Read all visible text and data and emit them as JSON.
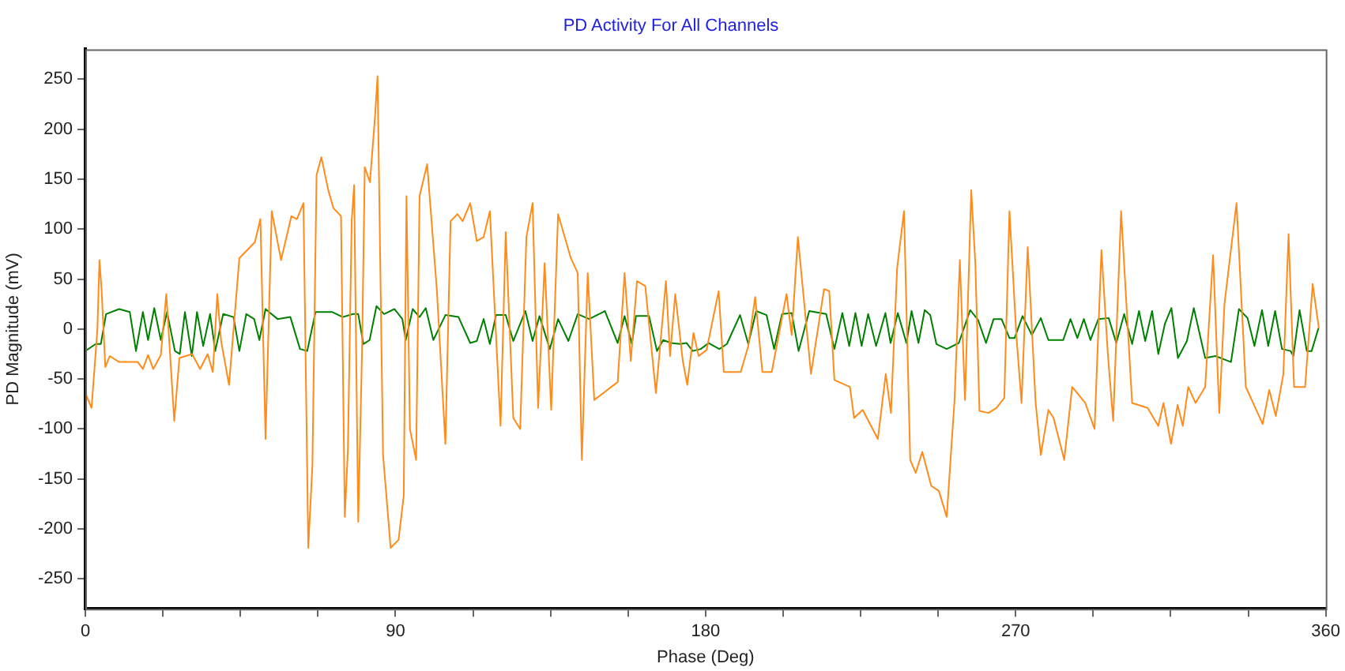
{
  "chart_data": {
    "type": "line",
    "title": "PD Activity For All Channels",
    "xlabel": "Phase (Deg)",
    "ylabel": "PD Magnitude (mV)",
    "xlim": [
      0,
      360
    ],
    "xticks": [
      0,
      {
        "value": 22.5,
        "label": null
      },
      {
        "value": 45,
        "label": null
      },
      {
        "value": 67.5,
        "label": null
      },
      90,
      {
        "value": 112.5,
        "label": null
      },
      {
        "value": 135,
        "label": null
      },
      {
        "value": 157.5,
        "label": null
      },
      180,
      {
        "value": 202.5,
        "label": null
      },
      {
        "value": 225,
        "label": null
      },
      {
        "value": 247.5,
        "label": null
      },
      270,
      {
        "value": 292.5,
        "label": null
      },
      {
        "value": 315,
        "label": null
      },
      {
        "value": 337.5,
        "label": null
      },
      360
    ],
    "ylim": [
      -280,
      280
    ],
    "yticks": [
      -250,
      -200,
      -150,
      -100,
      -50,
      0,
      50,
      100,
      150,
      200,
      250
    ],
    "grid": false,
    "legend": false,
    "marker": "none",
    "line_style": "solid",
    "series": [
      {
        "color": "#ff8c1a",
        "x": [
          0,
          1.8,
          3.5,
          4.1,
          4.7,
          5.8,
          7.1,
          9.8,
          15.2,
          16.7,
          18.2,
          19.7,
          21.9,
          23.5,
          25.8,
          27.3,
          31,
          33.3,
          35.5,
          37,
          38.3,
          39.4,
          41.7,
          44.7,
          49.2,
          50.8,
          52.3,
          54.1,
          56.8,
          59.8,
          61.4,
          63.3,
          64.7,
          65.9,
          67.1,
          68.5,
          70.5,
          72,
          74.2,
          75.3,
          76.2,
          77.3,
          78,
          79.2,
          80.3,
          81.1,
          82.6,
          84.1,
          84.8,
          86.4,
          88.6,
          90.9,
          92.4,
          93.2,
          94.2,
          96,
          97,
          99.2,
          102,
          104.5,
          106,
          108,
          109.5,
          111.7,
          113.6,
          115.6,
          117.4,
          120.5,
          122,
          124.2,
          126.2,
          128,
          129.8,
          131.4,
          133.3,
          135.2,
          137.2,
          140.9,
          142.9,
          144.1,
          145.8,
          147.7,
          154.5,
          156.5,
          158.3,
          160.1,
          162.5,
          165.6,
          168.5,
          169.7,
          171.2,
          173.4,
          174.7,
          176.5,
          178,
          180.3,
          183.8,
          185.3,
          190.2,
          192.4,
          194.4,
          196.5,
          199.2,
          203.5,
          205,
          206.8,
          210.6,
          214.4,
          215.9,
          217.4,
          221.9,
          223.1,
          225.6,
          230,
          232.3,
          233.8,
          235.6,
          237.6,
          239.4,
          241,
          242.9,
          245.5,
          247.7,
          250,
          252.3,
          253.8,
          255.3,
          257.1,
          258.3,
          259.5,
          262.1,
          264.4,
          266.7,
          268.2,
          270.2,
          271.7,
          273.5,
          275.8,
          277.3,
          279.5,
          281,
          284.1,
          286.4,
          290.2,
          292.9,
          294.9,
          296.8,
          298.3,
          300.6,
          303.8,
          308.3,
          311.4,
          312.9,
          315.1,
          317,
          318.5,
          320.1,
          322.2,
          325,
          327.3,
          329.1,
          330.6,
          334.1,
          336.8,
          341.7,
          343.6,
          345.5,
          347.7,
          349.2,
          350.8,
          354,
          356.2,
          358
        ],
        "values": [
          -64,
          -79,
          0,
          69,
          40,
          -38,
          -27,
          -33,
          -33,
          -40,
          -26,
          -40,
          -26,
          35,
          -92,
          -29,
          -25,
          -40,
          -25,
          -43,
          35,
          -12,
          -56,
          71,
          87,
          110,
          -110,
          118,
          69,
          113,
          110,
          126,
          -219,
          -136,
          154,
          172,
          139,
          121,
          113,
          -188,
          -121,
          108,
          144,
          -193,
          -22,
          162,
          147,
          214,
          253,
          -126,
          -219,
          -211,
          -167,
          133,
          -100,
          -131,
          133,
          165,
          40,
          -115,
          108,
          115,
          108,
          126,
          88,
          92,
          118,
          -97,
          97,
          -89,
          -100,
          92,
          126,
          -79,
          66,
          -81,
          115,
          71,
          56,
          -131,
          56,
          -71,
          -53,
          56,
          -32,
          48,
          43,
          -64,
          48,
          -27,
          35,
          -32,
          -56,
          -4,
          -27,
          -21,
          38,
          -43,
          -43,
          -17,
          32,
          -43,
          -43,
          35,
          -6,
          92,
          -45,
          40,
          38,
          -51,
          -58,
          -89,
          -81,
          -110,
          -45,
          -84,
          61,
          118,
          -131,
          -144,
          -123,
          -157,
          -162,
          -188,
          -69,
          69,
          -71,
          139,
          66,
          -82,
          -84,
          -79,
          -69,
          118,
          -6,
          -74,
          82,
          -74,
          -126,
          -81,
          -89,
          -131,
          -58,
          -74,
          -100,
          79,
          -27,
          -92,
          118,
          -74,
          -79,
          -97,
          -74,
          -115,
          -76,
          -97,
          -58,
          -74,
          -58,
          74,
          -84,
          25,
          126,
          -58,
          -95,
          -61,
          -87,
          -45,
          95,
          -58,
          -58,
          45,
          1
        ]
      },
      {
        "color": "#008000",
        "x": [
          0,
          3,
          4.5,
          6,
          9.8,
          12.9,
          14.7,
          16.7,
          18.2,
          20,
          21.9,
          23.7,
          26,
          27.4,
          28.9,
          30.9,
          32.4,
          34.2,
          36.2,
          37.7,
          40,
          43,
          44.7,
          46.7,
          49,
          50.5,
          52.3,
          55.8,
          59.5,
          62.3,
          64.4,
          66.8,
          71.7,
          74.7,
          77.7,
          79.2,
          80.7,
          82.5,
          84.5,
          86.7,
          89.7,
          92,
          93,
          95,
          97,
          98.8,
          101,
          104.5,
          108.3,
          111.7,
          113.6,
          115.6,
          117.4,
          119.2,
          122,
          124.2,
          127.7,
          129.8,
          131.8,
          134.8,
          137.2,
          140.2,
          142.9,
          146.2,
          150.8,
          154.5,
          156.5,
          158.6,
          159.8,
          163.6,
          165.9,
          167.7,
          170,
          172.6,
          174.5,
          176.3,
          178.6,
          180.9,
          184,
          186.2,
          190,
          192.4,
          194.7,
          197.7,
          199.9,
          202.2,
          205,
          207,
          210.1,
          215,
          217.4,
          219.7,
          221.7,
          223.5,
          225.3,
          227.2,
          229.5,
          232.2,
          233.7,
          235.8,
          238.3,
          239.8,
          241.8,
          243.6,
          245.2,
          247,
          250,
          253.5,
          256.8,
          259.1,
          261.4,
          263.6,
          265.9,
          268.2,
          269.7,
          272,
          274.7,
          277.3,
          279.5,
          283.8,
          285.9,
          287.9,
          289.8,
          291.7,
          294,
          297,
          299.2,
          301.5,
          303.8,
          305.8,
          307.6,
          309.6,
          311.4,
          313.3,
          315.2,
          317.1,
          319.7,
          321.7,
          325,
          328,
          332.5,
          334.8,
          337.3,
          339.3,
          341.5,
          343.3,
          345.3,
          347.3,
          349.8,
          350.6,
          352.4,
          354.5,
          355.9,
          357.9
        ],
        "values": [
          -22,
          -15,
          -15,
          15,
          20,
          17,
          -22,
          17,
          -11,
          21,
          -11,
          17,
          -22,
          -25,
          17,
          -27,
          17,
          -17,
          15,
          -22,
          15,
          12,
          -22,
          15,
          10,
          -11,
          20,
          10,
          12,
          -20,
          -22,
          17,
          17,
          12,
          15,
          15,
          -15,
          -11,
          23,
          15,
          20,
          10,
          -11,
          20,
          12,
          21,
          -11,
          14,
          12,
          -14,
          -12,
          10,
          -15,
          14,
          14,
          -12,
          18,
          -12,
          13,
          -20,
          10,
          -12,
          15,
          10,
          18,
          -14,
          13,
          -15,
          13,
          13,
          -22,
          -11,
          -14,
          -15,
          -14,
          -22,
          -20,
          -14,
          -20,
          -15,
          14,
          -15,
          18,
          14,
          -20,
          15,
          16,
          -22,
          18,
          15,
          -20,
          16,
          -17,
          16,
          -17,
          15,
          -17,
          16,
          -14,
          16,
          -14,
          18,
          -14,
          19,
          14,
          -15,
          -20,
          -14,
          19,
          9,
          -14,
          10,
          10,
          -9,
          -9,
          13,
          -6,
          11,
          -11,
          -11,
          10,
          -9,
          10,
          -11,
          10,
          11,
          -14,
          15,
          -15,
          18,
          -12,
          18,
          -25,
          5,
          21,
          -29,
          -12,
          21,
          -29,
          -27,
          -33,
          20,
          11,
          -17,
          19,
          -17,
          18,
          -20,
          -22,
          -27,
          19,
          -22,
          -22,
          1
        ]
      }
    ]
  }
}
